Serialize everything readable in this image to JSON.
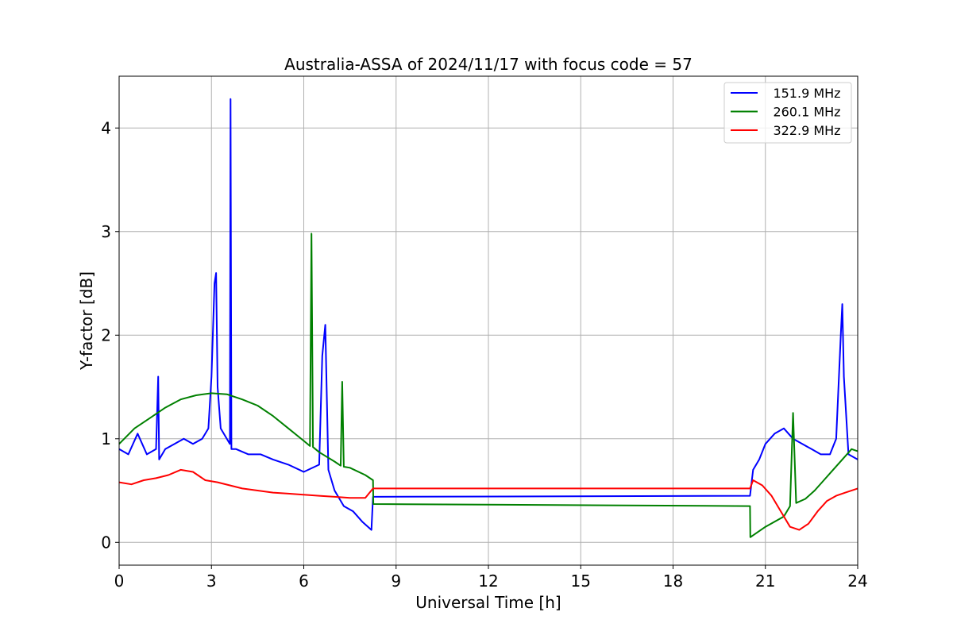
{
  "chart_data": {
    "type": "line",
    "title": "Australia-ASSA of 2024/11/17 with focus code = 57",
    "xlabel": "Universal Time [h]",
    "ylabel": "Y-factor [dB]",
    "xlim": [
      0,
      24
    ],
    "ylim": [
      -0.22,
      4.5
    ],
    "xticks": [
      0,
      3,
      6,
      9,
      12,
      15,
      18,
      21,
      24
    ],
    "yticks": [
      0,
      1,
      2,
      3,
      4
    ],
    "grid": true,
    "legend_position": "top-right",
    "series": [
      {
        "name": "151.9 MHz",
        "color": "#0000ff",
        "x": [
          0,
          0.3,
          0.6,
          0.9,
          1.2,
          1.27,
          1.3,
          1.5,
          1.8,
          2.1,
          2.4,
          2.7,
          2.9,
          3.0,
          3.1,
          3.15,
          3.2,
          3.3,
          3.5,
          3.6,
          3.62,
          3.65,
          3.8,
          4.2,
          4.6,
          5.0,
          5.5,
          6.0,
          6.5,
          6.6,
          6.7,
          6.8,
          7.0,
          7.3,
          7.6,
          7.9,
          8.2,
          8.25,
          20.5,
          20.6,
          20.8,
          21.0,
          21.3,
          21.6,
          21.9,
          22.2,
          22.5,
          22.8,
          23.1,
          23.3,
          23.45,
          23.5,
          23.55,
          23.7,
          24
        ],
        "y": [
          0.9,
          0.85,
          1.05,
          0.85,
          0.9,
          1.6,
          0.8,
          0.9,
          0.95,
          1.0,
          0.95,
          1.0,
          1.1,
          1.6,
          2.5,
          2.6,
          1.5,
          1.1,
          1.0,
          0.95,
          4.28,
          0.9,
          0.9,
          0.85,
          0.85,
          0.8,
          0.75,
          0.68,
          0.75,
          1.8,
          2.1,
          0.7,
          0.5,
          0.35,
          0.3,
          0.2,
          0.12,
          0.44,
          0.45,
          0.7,
          0.8,
          0.95,
          1.05,
          1.1,
          1.0,
          0.95,
          0.9,
          0.85,
          0.85,
          1.0,
          2.0,
          2.3,
          1.6,
          0.85,
          0.8
        ]
      },
      {
        "name": "260.1 MHz",
        "color": "#008000",
        "x": [
          0,
          0.5,
          1.0,
          1.5,
          2.0,
          2.5,
          3.0,
          3.5,
          4.0,
          4.5,
          5.0,
          5.5,
          6.0,
          6.2,
          6.25,
          6.3,
          6.5,
          7.0,
          7.2,
          7.25,
          7.3,
          7.5,
          8.0,
          8.25,
          8.26,
          20.5,
          20.51,
          21.0,
          21.3,
          21.6,
          21.8,
          21.9,
          22.0,
          22.3,
          22.6,
          22.9,
          23.2,
          23.5,
          23.8,
          24
        ],
        "y": [
          0.95,
          1.1,
          1.2,
          1.3,
          1.38,
          1.42,
          1.44,
          1.43,
          1.38,
          1.32,
          1.22,
          1.1,
          0.98,
          0.93,
          2.98,
          0.92,
          0.87,
          0.78,
          0.74,
          1.55,
          0.73,
          0.72,
          0.65,
          0.6,
          0.37,
          0.35,
          0.05,
          0.15,
          0.2,
          0.25,
          0.35,
          1.25,
          0.38,
          0.42,
          0.5,
          0.6,
          0.7,
          0.8,
          0.9,
          0.88
        ]
      },
      {
        "name": "322.9 MHz",
        "color": "#ff0000",
        "x": [
          0,
          0.4,
          0.8,
          1.2,
          1.6,
          2.0,
          2.4,
          2.8,
          3.2,
          3.6,
          4.0,
          4.5,
          5.0,
          5.5,
          6.0,
          6.5,
          7.0,
          7.5,
          8.0,
          8.25,
          20.5,
          20.6,
          20.9,
          21.2,
          21.5,
          21.8,
          22.1,
          22.4,
          22.7,
          23.0,
          23.3,
          23.6,
          24
        ],
        "y": [
          0.58,
          0.56,
          0.6,
          0.62,
          0.65,
          0.7,
          0.68,
          0.6,
          0.58,
          0.55,
          0.52,
          0.5,
          0.48,
          0.47,
          0.46,
          0.45,
          0.44,
          0.43,
          0.43,
          0.52,
          0.52,
          0.6,
          0.55,
          0.45,
          0.3,
          0.15,
          0.12,
          0.18,
          0.3,
          0.4,
          0.45,
          0.48,
          0.52
        ]
      }
    ]
  }
}
